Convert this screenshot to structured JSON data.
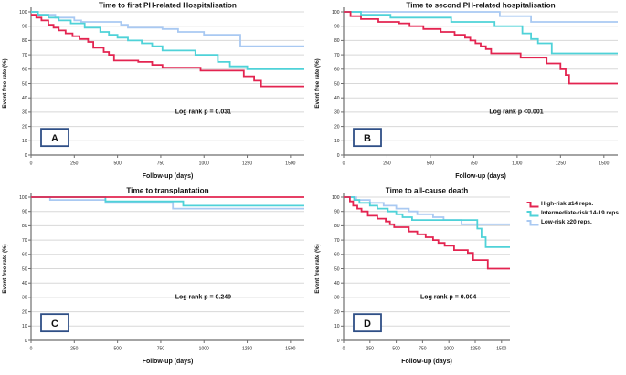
{
  "colors": {
    "high": "#e32450",
    "intermediate": "#4fd2d8",
    "low": "#a9c9f2",
    "grid": "#d8d8d8",
    "axis": "#6e6e6e",
    "text": "#111111",
    "panel_box_border": "#2f4f86"
  },
  "legend": {
    "items": [
      {
        "key": "high",
        "label": "High-risk ≤14 reps."
      },
      {
        "key": "intermediate",
        "label": "Intermediate-risk 14-19 reps."
      },
      {
        "key": "low",
        "label": "Low-risk ≥20 reps."
      }
    ]
  },
  "chart_data": [
    {
      "type": "line",
      "subtype": "kaplan-meier-step",
      "panel_label": "A",
      "title": "Time to first PH-related Hospitalisation",
      "annotation": "Log rank p = 0.031",
      "xlabel": "Follow-up (days)",
      "ylabel": "Event free rate (%)",
      "xlim": [
        0,
        1580
      ],
      "ylim": [
        0,
        100
      ],
      "xticks": [
        0,
        250,
        500,
        750,
        1000,
        1250,
        1500
      ],
      "yticks": [
        0,
        10,
        20,
        30,
        40,
        50,
        60,
        70,
        80,
        90,
        100
      ],
      "grid": true,
      "series": [
        {
          "name": "Low-risk ≥20 reps.",
          "color_key": "low",
          "points": [
            [
              0,
              100
            ],
            [
              40,
              98
            ],
            [
              140,
              96
            ],
            [
              250,
              94
            ],
            [
              290,
              93
            ],
            [
              520,
              91
            ],
            [
              560,
              89
            ],
            [
              760,
              88
            ],
            [
              850,
              86
            ],
            [
              1000,
              84
            ],
            [
              1210,
              76
            ],
            [
              1580,
              76
            ]
          ]
        },
        {
          "name": "Intermediate-risk 14-19 reps.",
          "color_key": "intermediate",
          "points": [
            [
              0,
              100
            ],
            [
              40,
              98
            ],
            [
              100,
              96
            ],
            [
              160,
              94
            ],
            [
              230,
              92
            ],
            [
              310,
              89
            ],
            [
              400,
              86
            ],
            [
              450,
              84
            ],
            [
              500,
              82
            ],
            [
              560,
              80
            ],
            [
              640,
              78
            ],
            [
              700,
              76
            ],
            [
              760,
              73
            ],
            [
              950,
              70
            ],
            [
              1080,
              65
            ],
            [
              1150,
              62
            ],
            [
              1250,
              60
            ],
            [
              1580,
              60
            ]
          ]
        },
        {
          "name": "High-risk ≤14 reps.",
          "color_key": "high",
          "points": [
            [
              0,
              98
            ],
            [
              30,
              96
            ],
            [
              60,
              94
            ],
            [
              100,
              91
            ],
            [
              130,
              89
            ],
            [
              160,
              87
            ],
            [
              200,
              85
            ],
            [
              240,
              83
            ],
            [
              280,
              81
            ],
            [
              330,
              79
            ],
            [
              360,
              75
            ],
            [
              420,
              72
            ],
            [
              450,
              70
            ],
            [
              480,
              66
            ],
            [
              620,
              65
            ],
            [
              700,
              63
            ],
            [
              760,
              61
            ],
            [
              980,
              59
            ],
            [
              1230,
              55
            ],
            [
              1290,
              52
            ],
            [
              1330,
              48
            ],
            [
              1580,
              48
            ]
          ]
        }
      ]
    },
    {
      "type": "line",
      "subtype": "kaplan-meier-step",
      "panel_label": "B",
      "title": "Time to second PH-related hospitalisation",
      "annotation": "Log rank p <0.001",
      "xlabel": "Follow-up (days)",
      "ylabel": "Event free rate (%)",
      "xlim": [
        0,
        1580
      ],
      "ylim": [
        0,
        100
      ],
      "xticks": [
        0,
        250,
        500,
        750,
        1000,
        1250,
        1500
      ],
      "yticks": [
        0,
        10,
        20,
        30,
        40,
        50,
        60,
        70,
        80,
        90,
        100
      ],
      "grid": true,
      "series": [
        {
          "name": "Low-risk ≥20 reps.",
          "color_key": "low",
          "points": [
            [
              0,
              100
            ],
            [
              900,
              97
            ],
            [
              1080,
              93
            ],
            [
              1580,
              93
            ]
          ]
        },
        {
          "name": "Intermediate-risk 14-19 reps.",
          "color_key": "intermediate",
          "points": [
            [
              0,
              100
            ],
            [
              100,
              98
            ],
            [
              270,
              96
            ],
            [
              620,
              93
            ],
            [
              870,
              90
            ],
            [
              1030,
              85
            ],
            [
              1080,
              81
            ],
            [
              1120,
              78
            ],
            [
              1200,
              71
            ],
            [
              1580,
              71
            ]
          ]
        },
        {
          "name": "High-risk ≤14 reps.",
          "color_key": "high",
          "points": [
            [
              0,
              100
            ],
            [
              40,
              97
            ],
            [
              100,
              95
            ],
            [
              200,
              93
            ],
            [
              320,
              92
            ],
            [
              380,
              90
            ],
            [
              460,
              88
            ],
            [
              560,
              86
            ],
            [
              640,
              84
            ],
            [
              700,
              82
            ],
            [
              730,
              80
            ],
            [
              760,
              78
            ],
            [
              790,
              76
            ],
            [
              820,
              74
            ],
            [
              850,
              71
            ],
            [
              1020,
              68
            ],
            [
              1170,
              64
            ],
            [
              1250,
              60
            ],
            [
              1280,
              56
            ],
            [
              1300,
              50
            ],
            [
              1580,
              50
            ]
          ]
        }
      ]
    },
    {
      "type": "line",
      "subtype": "kaplan-meier-step",
      "panel_label": "C",
      "title": "Time to transplantation",
      "annotation": "Log rank p = 0.249",
      "xlabel": "Follow-up (days)",
      "ylabel": "Event free rate (%)",
      "xlim": [
        0,
        1580
      ],
      "ylim": [
        0,
        100
      ],
      "xticks": [
        0,
        250,
        500,
        750,
        1000,
        1250,
        1500
      ],
      "yticks": [
        0,
        10,
        20,
        30,
        40,
        50,
        60,
        70,
        80,
        90,
        100
      ],
      "grid": true,
      "series": [
        {
          "name": "Low-risk ≥20 reps.",
          "color_key": "low",
          "points": [
            [
              0,
              100
            ],
            [
              110,
              98
            ],
            [
              430,
              96
            ],
            [
              820,
              92
            ],
            [
              1580,
              92
            ]
          ]
        },
        {
          "name": "Intermediate-risk 14-19 reps.",
          "color_key": "intermediate",
          "points": [
            [
              0,
              100
            ],
            [
              430,
              97
            ],
            [
              880,
              94
            ],
            [
              1580,
              94
            ]
          ]
        },
        {
          "name": "High-risk ≤14 reps.",
          "color_key": "high",
          "points": [
            [
              0,
              100
            ],
            [
              1580,
              100
            ]
          ]
        }
      ]
    },
    {
      "type": "line",
      "subtype": "kaplan-meier-step",
      "panel_label": "D",
      "title": "Time to all-cause death",
      "annotation": "Log rank p = 0.004",
      "xlabel": "Follow-up (days)",
      "ylabel": "Event free rate (%)",
      "xlim": [
        0,
        1580
      ],
      "ylim": [
        0,
        100
      ],
      "xticks": [
        0,
        250,
        500,
        750,
        1000,
        1250,
        1500
      ],
      "yticks": [
        0,
        10,
        20,
        30,
        40,
        50,
        60,
        70,
        80,
        90,
        100
      ],
      "grid": true,
      "legend_position": "right",
      "series": [
        {
          "name": "Low-risk ≥20 reps.",
          "color_key": "low",
          "points": [
            [
              0,
              100
            ],
            [
              120,
              98
            ],
            [
              250,
              96
            ],
            [
              380,
              94
            ],
            [
              500,
              92
            ],
            [
              620,
              90
            ],
            [
              700,
              88
            ],
            [
              850,
              86
            ],
            [
              950,
              84
            ],
            [
              1120,
              81
            ],
            [
              1580,
              81
            ]
          ]
        },
        {
          "name": "Intermediate-risk 14-19 reps.",
          "color_key": "intermediate",
          "points": [
            [
              0,
              100
            ],
            [
              100,
              98
            ],
            [
              150,
              96
            ],
            [
              250,
              94
            ],
            [
              320,
              92
            ],
            [
              420,
              90
            ],
            [
              500,
              88
            ],
            [
              560,
              86
            ],
            [
              650,
              84
            ],
            [
              1270,
              78
            ],
            [
              1310,
              72
            ],
            [
              1350,
              65
            ],
            [
              1580,
              65
            ]
          ]
        },
        {
          "name": "High-risk ≤14 reps.",
          "color_key": "high",
          "points": [
            [
              0,
              100
            ],
            [
              60,
              97
            ],
            [
              90,
              94
            ],
            [
              130,
              92
            ],
            [
              170,
              90
            ],
            [
              230,
              87
            ],
            [
              320,
              85
            ],
            [
              400,
              83
            ],
            [
              440,
              81
            ],
            [
              480,
              79
            ],
            [
              620,
              76
            ],
            [
              700,
              74
            ],
            [
              780,
              72
            ],
            [
              850,
              70
            ],
            [
              900,
              68
            ],
            [
              960,
              66
            ],
            [
              1050,
              63
            ],
            [
              1180,
              61
            ],
            [
              1230,
              56
            ],
            [
              1370,
              50
            ],
            [
              1580,
              50
            ]
          ]
        }
      ]
    }
  ]
}
